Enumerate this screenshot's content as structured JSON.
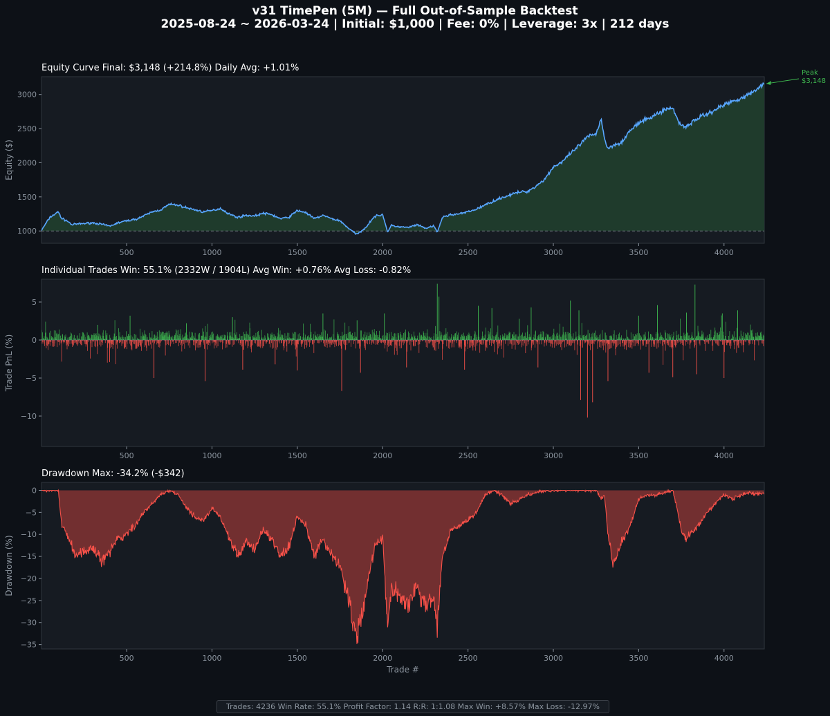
{
  "header": {
    "title_line1": "v31 TimePen (5M)  —  Full Out-of-Sample Backtest",
    "title_line2": "2025-08-24 ~ 2026-03-24  |  Initial: $1,000  |  Fee: 0%  |  Leverage: 3x  |  212 days"
  },
  "colors": {
    "background": "#0d1117",
    "panel": "#161b22",
    "spine": "#30363d",
    "text": "#ffffff",
    "tick": "#8b949e",
    "equity_line": "#58a6ff",
    "equity_fill": "#1f3b2c",
    "win": "#3fb950",
    "loss": "#f85149",
    "dd_fill": "#722f30"
  },
  "chart_data": [
    {
      "type": "line",
      "name": "equity",
      "title": "Equity Curve   Final: $3,148  (+214.8%)   Daily Avg: +1.01%",
      "xlabel": "",
      "ylabel": "Equity ($)",
      "xlim": [
        1,
        4236
      ],
      "ylim": [
        820,
        3260
      ],
      "xticks": [
        500,
        1000,
        1500,
        2000,
        2500,
        3000,
        3500,
        4000
      ],
      "yticks": [
        1000,
        1500,
        2000,
        2500,
        3000
      ],
      "baseline": 1000,
      "annotation": {
        "label": "Peak\n$3,148",
        "x": 4236,
        "y": 3148
      },
      "x": [
        1,
        50,
        100,
        120,
        150,
        180,
        200,
        250,
        300,
        350,
        400,
        450,
        500,
        550,
        600,
        650,
        700,
        750,
        800,
        850,
        900,
        950,
        1000,
        1050,
        1100,
        1150,
        1200,
        1250,
        1300,
        1350,
        1400,
        1450,
        1500,
        1550,
        1600,
        1650,
        1700,
        1750,
        1800,
        1830,
        1850,
        1900,
        1950,
        2000,
        2030,
        2050,
        2100,
        2150,
        2200,
        2250,
        2300,
        2320,
        2350,
        2400,
        2450,
        2500,
        2550,
        2600,
        2650,
        2700,
        2750,
        2800,
        2850,
        2900,
        2950,
        3000,
        3050,
        3100,
        3150,
        3200,
        3250,
        3280,
        3300,
        3320,
        3350,
        3400,
        3450,
        3500,
        3550,
        3600,
        3650,
        3700,
        3730,
        3750,
        3780,
        3800,
        3850,
        3900,
        3950,
        4000,
        4050,
        4100,
        4150,
        4200,
        4236
      ],
      "values": [
        1010,
        1200,
        1280,
        1180,
        1150,
        1090,
        1100,
        1110,
        1120,
        1100,
        1070,
        1120,
        1150,
        1170,
        1220,
        1280,
        1310,
        1390,
        1380,
        1340,
        1310,
        1280,
        1300,
        1330,
        1250,
        1200,
        1230,
        1220,
        1260,
        1240,
        1180,
        1200,
        1300,
        1270,
        1180,
        1230,
        1180,
        1150,
        1040,
        980,
        950,
        1050,
        1210,
        1240,
        980,
        1080,
        1060,
        1050,
        1090,
        1040,
        1070,
        980,
        1200,
        1240,
        1250,
        1280,
        1320,
        1380,
        1440,
        1490,
        1530,
        1570,
        1580,
        1660,
        1760,
        1940,
        2010,
        2130,
        2250,
        2380,
        2420,
        2650,
        2350,
        2200,
        2260,
        2300,
        2470,
        2580,
        2640,
        2700,
        2780,
        2800,
        2620,
        2550,
        2530,
        2570,
        2660,
        2710,
        2780,
        2850,
        2900,
        2950,
        3000,
        3100,
        3148
      ]
    },
    {
      "type": "bar",
      "name": "trades",
      "title": "Individual Trades   Win: 55.1%  (2332W / 1904L)   Avg Win: +0.76%   Avg Loss: -0.82%",
      "xlabel": "",
      "ylabel": "Trade PnL (%)",
      "xlim": [
        1,
        4236
      ],
      "ylim": [
        -14.0,
        8.0
      ],
      "xticks": [
        500,
        1000,
        1500,
        2000,
        2500,
        3000,
        3500,
        4000
      ],
      "yticks": [
        5,
        0,
        -5,
        -10
      ],
      "large_wins": [
        [
          330,
          2.0
        ],
        [
          520,
          3.2
        ],
        [
          850,
          2.2
        ],
        [
          1120,
          3.0
        ],
        [
          1650,
          3.5
        ],
        [
          1850,
          2.6
        ],
        [
          2010,
          3.5
        ],
        [
          2320,
          7.4
        ],
        [
          2330,
          5.7
        ],
        [
          2560,
          4.5
        ],
        [
          2640,
          4.2
        ],
        [
          2800,
          2.8
        ],
        [
          2870,
          4.3
        ],
        [
          3100,
          5.2
        ],
        [
          3150,
          3.9
        ],
        [
          3500,
          3.2
        ],
        [
          3610,
          4.6
        ],
        [
          3780,
          3.6
        ],
        [
          3830,
          7.3
        ],
        [
          3990,
          3.5
        ],
        [
          4080,
          3.9
        ]
      ],
      "large_losses": [
        [
          400,
          -2.9
        ],
        [
          660,
          -5.0
        ],
        [
          960,
          -5.4
        ],
        [
          1180,
          -3.9
        ],
        [
          1370,
          -3.2
        ],
        [
          1500,
          -4.0
        ],
        [
          1760,
          -6.7
        ],
        [
          1870,
          -4.3
        ],
        [
          2140,
          -3.6
        ],
        [
          2480,
          -3.9
        ],
        [
          2910,
          -3.6
        ],
        [
          3160,
          -7.9
        ],
        [
          3200,
          -10.2
        ],
        [
          3230,
          -8.2
        ],
        [
          3320,
          -5.4
        ],
        [
          3560,
          -4.3
        ],
        [
          3700,
          -4.9
        ],
        [
          3840,
          -4.5
        ],
        [
          4000,
          -5.0
        ]
      ]
    },
    {
      "type": "area",
      "name": "drawdown",
      "title": "Drawdown   Max: -34.2%  (-$342)",
      "xlabel": "Trade #",
      "ylabel": "Drawdown (%)",
      "xlim": [
        1,
        4236
      ],
      "ylim": [
        -36,
        1.8
      ],
      "xticks": [
        500,
        1000,
        1500,
        2000,
        2500,
        3000,
        3500,
        4000
      ],
      "yticks": [
        0,
        -5,
        -10,
        -15,
        -20,
        -25,
        -30,
        -35
      ],
      "x": [
        1,
        100,
        120,
        150,
        200,
        250,
        300,
        350,
        400,
        450,
        500,
        550,
        600,
        650,
        700,
        750,
        800,
        850,
        900,
        950,
        1000,
        1050,
        1100,
        1150,
        1200,
        1250,
        1300,
        1350,
        1400,
        1450,
        1500,
        1550,
        1600,
        1650,
        1700,
        1750,
        1800,
        1830,
        1850,
        1900,
        1950,
        2000,
        2030,
        2050,
        2100,
        2150,
        2200,
        2250,
        2300,
        2320,
        2350,
        2400,
        2450,
        2500,
        2550,
        2600,
        2650,
        2700,
        2750,
        2800,
        2850,
        2900,
        2950,
        3000,
        3050,
        3100,
        3150,
        3200,
        3250,
        3280,
        3300,
        3320,
        3350,
        3400,
        3450,
        3500,
        3550,
        3600,
        3650,
        3700,
        3730,
        3750,
        3780,
        3800,
        3850,
        3900,
        3950,
        4000,
        4050,
        4100,
        4150,
        4200,
        4236
      ],
      "values": [
        0,
        0,
        -8,
        -10,
        -15,
        -14,
        -13,
        -16,
        -14,
        -11,
        -10,
        -8,
        -5,
        -3,
        -1,
        0,
        -1,
        -4,
        -6,
        -7,
        -4,
        -6,
        -11,
        -15,
        -12,
        -13,
        -9,
        -11,
        -15,
        -13,
        -6,
        -8,
        -15,
        -11,
        -15,
        -17,
        -25,
        -30,
        -33,
        -24,
        -13,
        -11,
        -32,
        -22,
        -24,
        -26,
        -22,
        -26,
        -25,
        -30,
        -15,
        -9,
        -8,
        -7,
        -5,
        -1,
        0,
        -1,
        -3,
        -2,
        -1,
        -0.5,
        0,
        0,
        0,
        0,
        0,
        0,
        0,
        -2,
        -1,
        -10,
        -17,
        -12,
        -8,
        -2,
        -1,
        -1,
        -0.5,
        0,
        -5,
        -9,
        -11,
        -10,
        -8,
        -5,
        -3,
        -1,
        -2,
        -1,
        -0.5,
        -1,
        -0.5
      ]
    }
  ],
  "footer": {
    "stats": "Trades: 4236   Win Rate: 55.1%   Profit Factor: 1.14   R:R: 1:1.08   Max Win: +8.57%   Max Loss: -12.97%"
  }
}
